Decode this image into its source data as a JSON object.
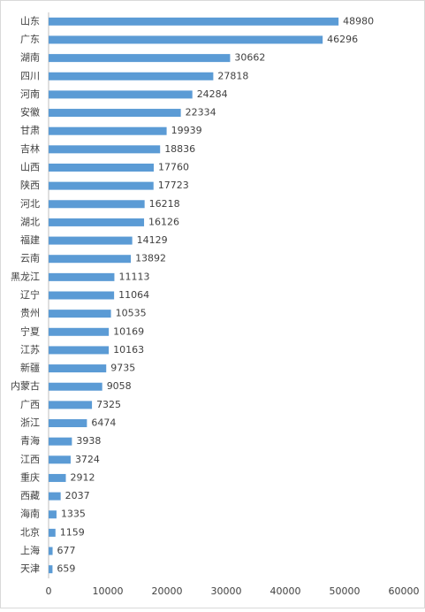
{
  "chart_data": {
    "type": "bar",
    "orientation": "horizontal",
    "categories": [
      "山东",
      "广东",
      "湖南",
      "四川",
      "河南",
      "安徽",
      "甘肃",
      "吉林",
      "山西",
      "陕西",
      "河北",
      "湖北",
      "福建",
      "云南",
      "黑龙江",
      "辽宁",
      "贵州",
      "宁夏",
      "江苏",
      "新疆",
      "内蒙古",
      "广西",
      "浙江",
      "青海",
      "江西",
      "重庆",
      "西藏",
      "海南",
      "北京",
      "上海",
      "天津"
    ],
    "values": [
      48980,
      46296,
      30662,
      27818,
      24284,
      22334,
      19939,
      18836,
      17760,
      17723,
      16218,
      16126,
      14129,
      13892,
      11113,
      11064,
      10535,
      10169,
      10163,
      9735,
      9058,
      7325,
      6474,
      3938,
      3724,
      2912,
      2037,
      1335,
      1159,
      677,
      659
    ],
    "color": "#5b9bd5",
    "xlim": [
      0,
      60000
    ],
    "xticks": [
      0,
      10000,
      20000,
      30000,
      40000,
      50000,
      60000
    ],
    "grid": false
  }
}
